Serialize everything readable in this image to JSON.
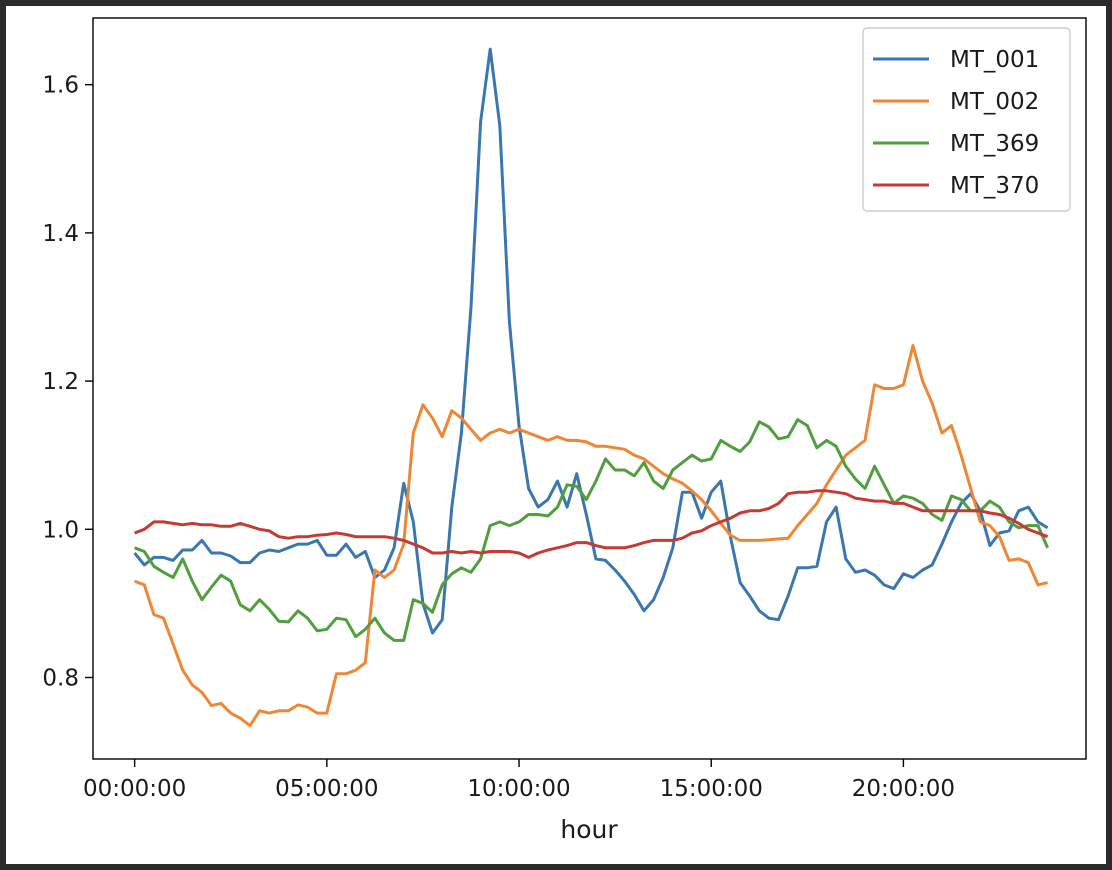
{
  "chart_data": {
    "type": "line",
    "xlabel": "hour",
    "ylabel": "",
    "xlim": [
      "-01:05:00",
      "24:45:00"
    ],
    "ylim": [
      0.69,
      1.69
    ],
    "x_tick_labels": [
      "00:00:00",
      "05:00:00",
      "10:00:00",
      "15:00:00",
      "20:00:00"
    ],
    "y_tick_labels": [
      "0.8",
      "1.0",
      "1.2",
      "1.4",
      "1.6"
    ],
    "legend_position": "top-right",
    "x": [
      "00:00:00",
      "00:15:00",
      "00:30:00",
      "00:45:00",
      "01:00:00",
      "01:15:00",
      "01:30:00",
      "01:45:00",
      "02:00:00",
      "02:15:00",
      "02:30:00",
      "02:45:00",
      "03:00:00",
      "03:15:00",
      "03:30:00",
      "03:45:00",
      "04:00:00",
      "04:15:00",
      "04:30:00",
      "04:45:00",
      "05:00:00",
      "05:15:00",
      "05:30:00",
      "05:45:00",
      "06:00:00",
      "06:15:00",
      "06:30:00",
      "06:45:00",
      "07:00:00",
      "07:15:00",
      "07:30:00",
      "07:45:00",
      "08:00:00",
      "08:15:00",
      "08:30:00",
      "08:45:00",
      "09:00:00",
      "09:15:00",
      "09:30:00",
      "09:45:00",
      "10:00:00",
      "10:15:00",
      "10:30:00",
      "10:45:00",
      "11:00:00",
      "11:15:00",
      "11:30:00",
      "11:45:00",
      "12:00:00",
      "12:15:00",
      "12:30:00",
      "12:45:00",
      "13:00:00",
      "13:15:00",
      "13:30:00",
      "13:45:00",
      "14:00:00",
      "14:15:00",
      "14:30:00",
      "14:45:00",
      "15:00:00",
      "15:15:00",
      "15:30:00",
      "15:45:00",
      "16:00:00",
      "16:15:00",
      "16:30:00",
      "16:45:00",
      "17:00:00",
      "17:15:00",
      "17:30:00",
      "17:45:00",
      "18:00:00",
      "18:15:00",
      "18:30:00",
      "18:45:00",
      "19:00:00",
      "19:15:00",
      "19:30:00",
      "19:45:00",
      "20:00:00",
      "20:15:00",
      "20:30:00",
      "20:45:00",
      "21:00:00",
      "21:15:00",
      "21:30:00",
      "21:45:00",
      "22:00:00",
      "22:15:00",
      "22:30:00",
      "22:45:00",
      "23:00:00",
      "23:15:00",
      "23:30:00",
      "23:45:00"
    ],
    "series": [
      {
        "name": "MT_001",
        "color": "#3a76af",
        "values": [
          0.968,
          0.952,
          0.962,
          0.962,
          0.958,
          0.972,
          0.972,
          0.985,
          0.968,
          0.968,
          0.964,
          0.955,
          0.955,
          0.968,
          0.972,
          0.97,
          0.975,
          0.98,
          0.98,
          0.985,
          0.965,
          0.965,
          0.98,
          0.962,
          0.97,
          0.935,
          0.945,
          0.975,
          1.062,
          1.01,
          0.9,
          0.86,
          0.878,
          1.03,
          1.13,
          1.3,
          1.55,
          1.648,
          1.545,
          1.28,
          1.14,
          1.055,
          1.03,
          1.04,
          1.065,
          1.03,
          1.075,
          1.02,
          0.96,
          0.958,
          0.945,
          0.93,
          0.912,
          0.89,
          0.905,
          0.935,
          0.975,
          1.05,
          1.05,
          1.015,
          1.05,
          1.065,
          0.99,
          0.928,
          0.91,
          0.89,
          0.88,
          0.878,
          0.91,
          0.948,
          0.948,
          0.95,
          1.01,
          1.03,
          0.96,
          0.942,
          0.945,
          0.938,
          0.925,
          0.92,
          0.94,
          0.935,
          0.945,
          0.952,
          0.98,
          1.01,
          1.035,
          1.048,
          1.025,
          0.978,
          0.995,
          0.998,
          1.025,
          1.03,
          1.01,
          1.002
        ]
      },
      {
        "name": "MT_002",
        "color": "#ef8636",
        "values": [
          0.93,
          0.925,
          0.885,
          0.88,
          0.845,
          0.81,
          0.79,
          0.78,
          0.762,
          0.765,
          0.752,
          0.745,
          0.735,
          0.755,
          0.752,
          0.755,
          0.755,
          0.763,
          0.76,
          0.752,
          0.752,
          0.805,
          0.805,
          0.81,
          0.82,
          0.945,
          0.935,
          0.945,
          0.98,
          1.13,
          1.168,
          1.15,
          1.125,
          1.16,
          1.15,
          1.135,
          1.12,
          1.13,
          1.135,
          1.13,
          1.135,
          1.13,
          1.125,
          1.12,
          1.125,
          1.12,
          1.12,
          1.118,
          1.112,
          1.112,
          1.11,
          1.108,
          1.1,
          1.095,
          1.085,
          1.075,
          1.068,
          1.062,
          1.052,
          1.04,
          1.025,
          1.008,
          0.992,
          0.985,
          0.985,
          0.985,
          0.986,
          0.987,
          0.988,
          1.005,
          1.02,
          1.035,
          1.06,
          1.08,
          1.1,
          1.11,
          1.12,
          1.195,
          1.19,
          1.19,
          1.195,
          1.248,
          1.2,
          1.17,
          1.13,
          1.14,
          1.1,
          1.055,
          1.01,
          1.005,
          0.99,
          0.958,
          0.96,
          0.955,
          0.925,
          0.928
        ]
      },
      {
        "name": "MT_369",
        "color": "#519e3e",
        "values": [
          0.975,
          0.97,
          0.95,
          0.942,
          0.935,
          0.96,
          0.93,
          0.905,
          0.922,
          0.938,
          0.93,
          0.898,
          0.89,
          0.905,
          0.892,
          0.876,
          0.875,
          0.89,
          0.88,
          0.863,
          0.865,
          0.88,
          0.878,
          0.855,
          0.865,
          0.88,
          0.86,
          0.85,
          0.85,
          0.905,
          0.9,
          0.888,
          0.925,
          0.94,
          0.948,
          0.942,
          0.96,
          1.005,
          1.01,
          1.005,
          1.01,
          1.02,
          1.02,
          1.018,
          1.03,
          1.06,
          1.058,
          1.04,
          1.065,
          1.095,
          1.08,
          1.08,
          1.072,
          1.09,
          1.065,
          1.055,
          1.08,
          1.09,
          1.1,
          1.092,
          1.095,
          1.12,
          1.112,
          1.105,
          1.118,
          1.145,
          1.138,
          1.122,
          1.125,
          1.148,
          1.14,
          1.11,
          1.12,
          1.112,
          1.085,
          1.068,
          1.055,
          1.085,
          1.06,
          1.035,
          1.045,
          1.042,
          1.035,
          1.02,
          1.012,
          1.045,
          1.04,
          1.025,
          1.025,
          1.038,
          1.03,
          1.01,
          1.002,
          1.005,
          1.005,
          0.975
        ]
      },
      {
        "name": "MT_370",
        "color": "#c53a32",
        "values": [
          0.995,
          1.0,
          1.01,
          1.01,
          1.008,
          1.006,
          1.008,
          1.006,
          1.006,
          1.004,
          1.004,
          1.008,
          1.004,
          1.0,
          0.998,
          0.99,
          0.988,
          0.99,
          0.99,
          0.992,
          0.993,
          0.995,
          0.993,
          0.99,
          0.99,
          0.99,
          0.99,
          0.988,
          0.985,
          0.98,
          0.975,
          0.968,
          0.968,
          0.97,
          0.968,
          0.97,
          0.968,
          0.97,
          0.97,
          0.97,
          0.968,
          0.962,
          0.968,
          0.972,
          0.975,
          0.978,
          0.982,
          0.982,
          0.978,
          0.975,
          0.975,
          0.975,
          0.978,
          0.982,
          0.985,
          0.985,
          0.985,
          0.988,
          0.995,
          0.998,
          1.005,
          1.01,
          1.015,
          1.022,
          1.025,
          1.025,
          1.028,
          1.035,
          1.048,
          1.05,
          1.05,
          1.052,
          1.052,
          1.05,
          1.048,
          1.042,
          1.04,
          1.038,
          1.038,
          1.035,
          1.035,
          1.03,
          1.025,
          1.025,
          1.025,
          1.025,
          1.025,
          1.025,
          1.025,
          1.022,
          1.02,
          1.015,
          1.008,
          1.0,
          0.995,
          0.99
        ]
      }
    ]
  }
}
